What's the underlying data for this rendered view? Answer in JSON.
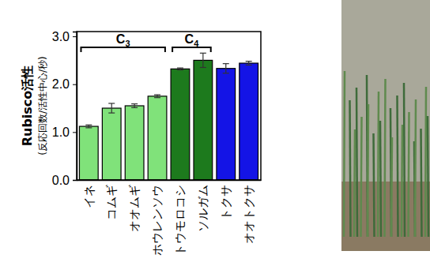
{
  "chart_data": {
    "type": "bar",
    "y_label": "Rubisco活性",
    "y_sublabel": "(反応回数/活性中心/秒)",
    "categories": [
      "イネ",
      "コムギ",
      "オオムギ",
      "ホウレンソウ",
      "トウモロコシ",
      "ソルガム",
      "トクサ",
      "オオトクサ"
    ],
    "values": [
      1.12,
      1.5,
      1.55,
      1.75,
      2.32,
      2.5,
      2.33,
      2.44
    ],
    "errors": [
      0.03,
      0.1,
      0.04,
      0.03,
      0.02,
      0.15,
      0.1,
      0.04
    ],
    "colors": [
      "#80e27a",
      "#80e27a",
      "#80e27a",
      "#80e27a",
      "#1d7a1d",
      "#1d7a1d",
      "#1414e6",
      "#1414e6"
    ],
    "groups": [
      {
        "label": "C3",
        "start": 0,
        "end": 3
      },
      {
        "label": "C4",
        "start": 4,
        "end": 5
      }
    ],
    "ylim": [
      0,
      3.1
    ],
    "yticks": [
      {
        "value": 0,
        "label": "0.0"
      },
      {
        "value": 1,
        "label": "1.0"
      },
      {
        "value": 2,
        "label": "2.0"
      },
      {
        "value": 3,
        "label": "3.0"
      }
    ],
    "grid": false
  }
}
